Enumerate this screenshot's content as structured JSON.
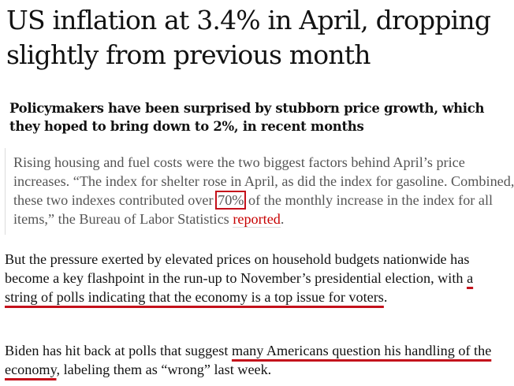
{
  "article": {
    "headline": "US inflation at 3.4% in April, dropping slightly from previous month",
    "standfirst": "Policymakers have been surprised by stubborn price growth, which they hoped to bring down to 2%, in recent months",
    "quote": {
      "part1": "Rising housing and fuel costs were the two biggest factors behind April’s price increases. “The index for shelter rose in April, as did the index for gasoline. Combined, these two indexes contributed over ",
      "highlight": "70%",
      "part2": " of the monthly increase in the index for all items,” the Bureau of Labor Statistics ",
      "link": "reported",
      "part3": "."
    },
    "paragraph1": {
      "part1": "But the pressure exerted by elevated prices on household budgets nationwide has become a key flashpoint in the run-up to November’s presidential election, with ",
      "underlined": "a string of polls indicating that the economy is a top issue for voters",
      "part2": "."
    },
    "paragraph2": {
      "part1": "Biden has hit back at polls that suggest ",
      "underlined": "many Americans question his handling of the economy",
      "part2": ", labeling them as “wrong” last week."
    }
  },
  "colors": {
    "annotation_red": "#c4111b",
    "link_red": "#c70000",
    "quote_text": "#555555"
  }
}
